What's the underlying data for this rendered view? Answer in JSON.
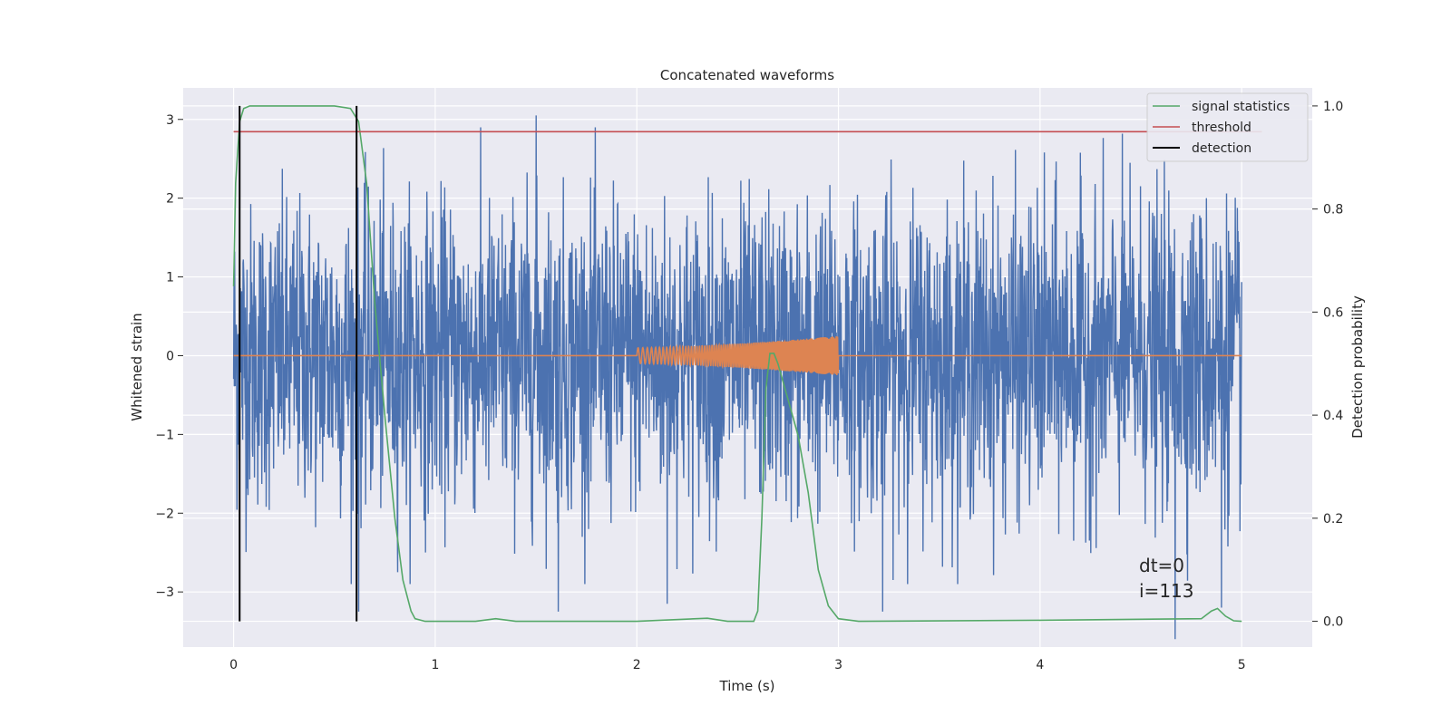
{
  "chart_data": {
    "type": "line",
    "title": "Concatenated waveforms",
    "xlabel": "Time (s)",
    "ylabel": "Whitened strain",
    "y2label": "Detection probability",
    "xlim": [
      -0.25,
      5.35
    ],
    "ylim": [
      -3.7,
      3.4
    ],
    "y2lim": [
      -0.05,
      1.035
    ],
    "xticks": [
      0,
      1,
      2,
      3,
      4,
      5
    ],
    "yticks": [
      -3,
      -2,
      -1,
      0,
      1,
      2,
      3
    ],
    "y2ticks": [
      0.0,
      0.2,
      0.4,
      0.6,
      0.8,
      1.0
    ],
    "xtick_labels": [
      "0",
      "1",
      "2",
      "3",
      "4",
      "5"
    ],
    "ytick_labels": [
      "−3",
      "−2",
      "−1",
      "0",
      "1",
      "2",
      "3"
    ],
    "y2tick_labels": [
      "0.0",
      "0.2",
      "0.4",
      "0.6",
      "0.8",
      "1.0"
    ],
    "grid": true,
    "legend_position": "top-right",
    "series": [
      {
        "name": "",
        "axis": "left",
        "color": "#4c72b0",
        "description_type": "whitened noise strain",
        "x_range": [
          0,
          5
        ],
        "peaks": [
          {
            "x": 0.62,
            "y": -3.25
          },
          {
            "x": 1.5,
            "y": 3.05
          },
          {
            "x": 1.61,
            "y": -3.25
          },
          {
            "x": 2.15,
            "y": -3.15
          },
          {
            "x": 3.22,
            "y": -3.25
          },
          {
            "x": 4.67,
            "y": -3.6
          },
          {
            "x": 4.9,
            "y": -3.2
          }
        ]
      },
      {
        "name": "",
        "axis": "left",
        "color": "#dd8452",
        "description_type": "injected chirp",
        "x": [
          0,
          2,
          3,
          5
        ],
        "envelope": [
          0,
          0.1,
          0.25,
          0
        ]
      },
      {
        "name": "signal statistics",
        "axis": "right",
        "color": "#55a868",
        "x": [
          0,
          0.01,
          0.03,
          0.05,
          0.08,
          0.1,
          0.5,
          0.58,
          0.62,
          0.66,
          0.7,
          0.75,
          0.8,
          0.84,
          0.88,
          0.9,
          0.95,
          1.2,
          1.3,
          1.4,
          2.0,
          2.35,
          2.45,
          2.58,
          2.6,
          2.62,
          2.64,
          2.66,
          2.68,
          2.7,
          2.75,
          2.8,
          2.85,
          2.9,
          2.95,
          3.0,
          3.1,
          4.0,
          4.8,
          4.85,
          4.88,
          4.92,
          4.96,
          5.0
        ],
        "y": [
          0.65,
          0.85,
          0.97,
          0.995,
          1.0,
          1.0,
          1.0,
          0.995,
          0.97,
          0.85,
          0.62,
          0.4,
          0.2,
          0.08,
          0.02,
          0.005,
          0.0,
          0.0,
          0.005,
          0.0,
          0.0,
          0.006,
          0.0,
          0.0,
          0.02,
          0.2,
          0.45,
          0.52,
          0.52,
          0.5,
          0.43,
          0.36,
          0.25,
          0.1,
          0.03,
          0.005,
          0.0,
          0.002,
          0.005,
          0.02,
          0.025,
          0.01,
          0.001,
          0.0
        ]
      },
      {
        "name": "threshold",
        "axis": "right",
        "color": "#c44e52",
        "x": [
          0,
          5.1
        ],
        "y": [
          0.95,
          0.95
        ]
      },
      {
        "name": "detection",
        "axis": "right",
        "color": "#000000",
        "vlines": [
          0.03,
          0.61
        ],
        "yrange": [
          0.0,
          1.0
        ]
      }
    ],
    "annotation": {
      "lines": [
        "dt=0",
        "i=113"
      ],
      "x": 4.5,
      "y": -3.3
    }
  }
}
